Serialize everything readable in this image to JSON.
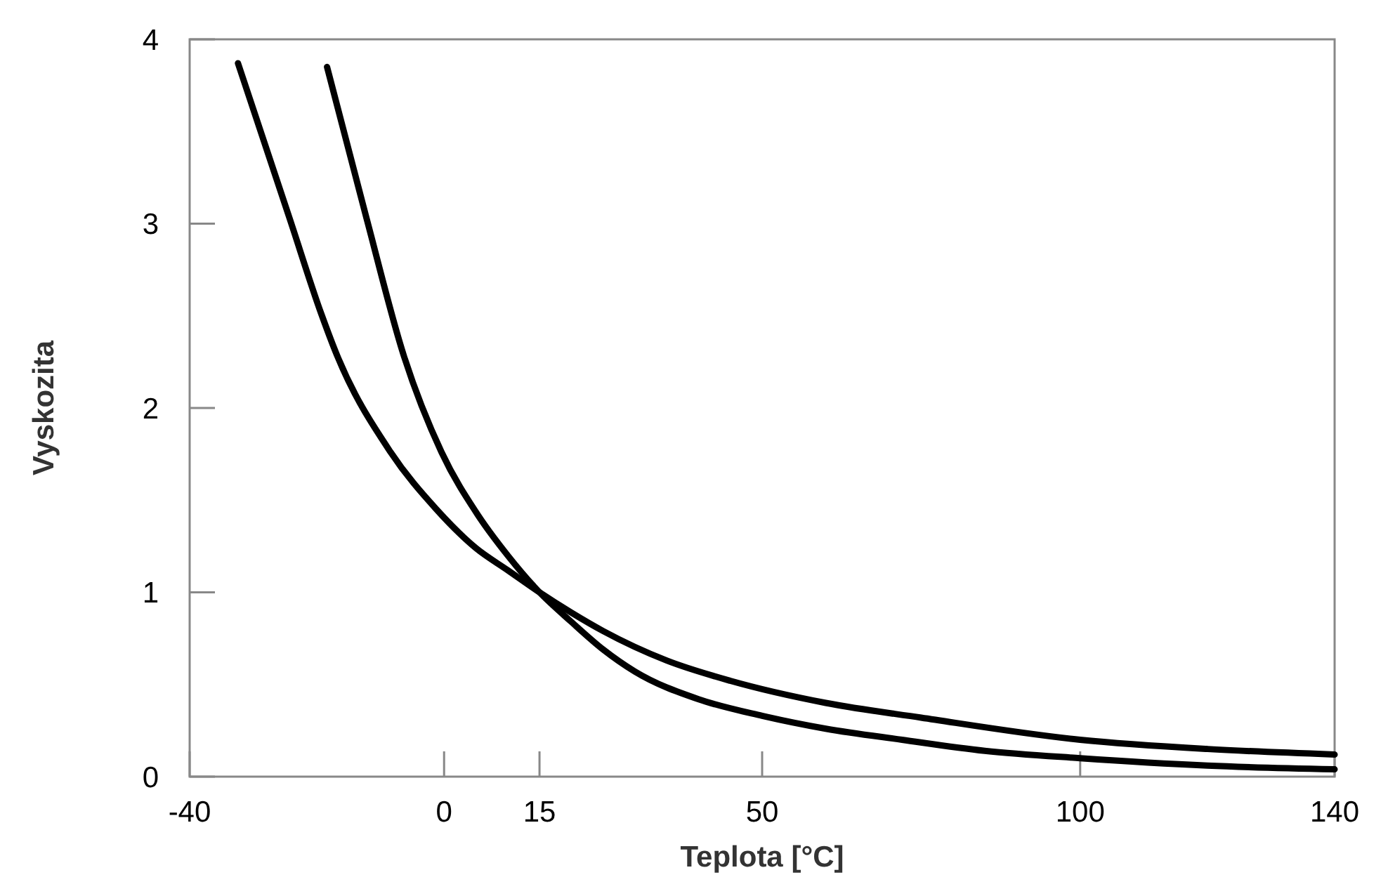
{
  "chart_data": {
    "type": "line",
    "xlabel": "Teplota [°C]",
    "ylabel": "Vyskozita",
    "xlim": [
      -40,
      140
    ],
    "ylim": [
      0,
      4
    ],
    "xticks": [
      -40,
      0,
      15,
      50,
      100,
      140
    ],
    "yticks": [
      0,
      1,
      2,
      3,
      4
    ],
    "grid": false,
    "marker": "none",
    "line_style": "solid",
    "series": [
      {
        "color": "#000000",
        "x": [
          -18.4,
          -12.2,
          -6.3,
          -0.4,
          5.3,
          10,
          15,
          20,
          25,
          30,
          40,
          50,
          60,
          72,
          85,
          100,
          120,
          140
        ],
        "values": [
          3.85,
          3.03,
          2.28,
          1.76,
          1.42,
          1.2,
          1,
          0.84,
          0.69,
          0.57,
          0.42,
          0.33,
          0.26,
          0.2,
          0.14,
          0.1,
          0.06,
          0.04
        ]
      },
      {
        "color": "#000000",
        "x": [
          -32.4,
          -24.3,
          -19.3,
          -17,
          -8.4,
          -1.2,
          5,
          10,
          15,
          20,
          25,
          35,
          45,
          60,
          75,
          100,
          120,
          140
        ],
        "values": [
          3.87,
          3.03,
          2.51,
          2.3,
          1.76,
          1.45,
          1.24,
          1.12,
          1,
          0.89,
          0.79,
          0.63,
          0.52,
          0.4,
          0.32,
          0.2,
          0.15,
          0.12
        ]
      }
    ]
  }
}
